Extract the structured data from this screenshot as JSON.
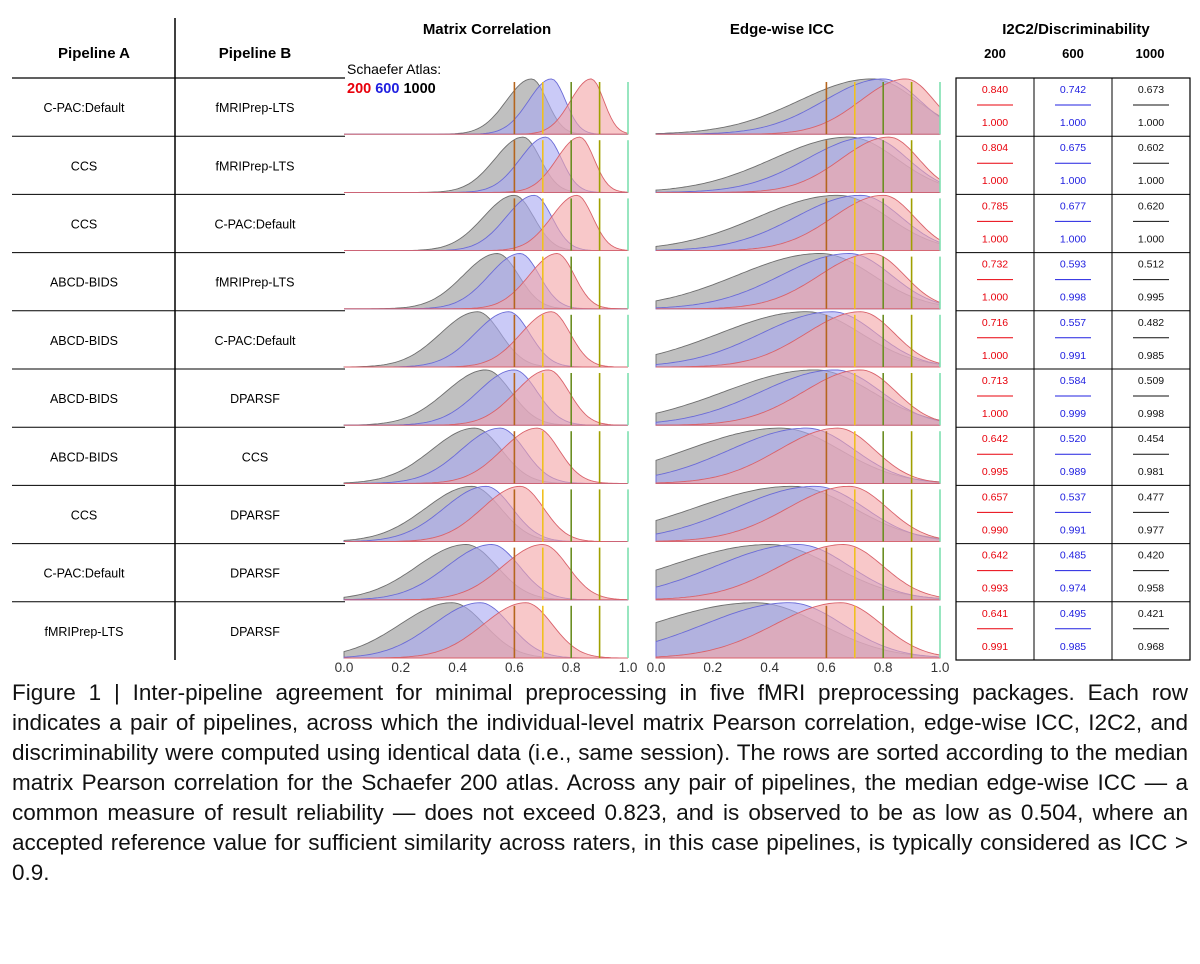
{
  "headers": {
    "pipeline_a": "Pipeline A",
    "pipeline_b": "Pipeline B",
    "matrix_correlation": "Matrix Correlation",
    "edge_icc": "Edge-wise ICC",
    "i2c2": "I2C2/Discriminability"
  },
  "atlas_legend": {
    "label": "Schaefer Atlas:",
    "items": [
      {
        "text": "200",
        "color": "#e8000b"
      },
      {
        "text": "600",
        "color": "#2020e0"
      },
      {
        "text": "1000",
        "color": "#000000"
      }
    ]
  },
  "i2c2_columns": [
    "200",
    "600",
    "1000"
  ],
  "series_colors": {
    "200": "#f4a6a8",
    "600": "#a9a9f2",
    "1000": "#9a9a9a"
  },
  "reference_lines": [
    {
      "x": 0.6,
      "color": "#b5651d"
    },
    {
      "x": 0.7,
      "color": "#f0c020"
    },
    {
      "x": 0.8,
      "color": "#6b8e23"
    },
    {
      "x": 0.9,
      "color": "#a0a000"
    },
    {
      "x": 1.0,
      "color": "#7fe0b0"
    }
  ],
  "axis_ticks": [
    "0.0",
    "0.2",
    "0.4",
    "0.6",
    "0.8",
    "1.0"
  ],
  "rows": [
    {
      "a": "C-PAC:Default",
      "b": "fMRIPrep-LTS",
      "i2c2": [
        [
          "0.840",
          "1.000"
        ],
        [
          "0.742",
          "1.000"
        ],
        [
          "0.673",
          "1.000"
        ]
      ]
    },
    {
      "a": "CCS",
      "b": "fMRIPrep-LTS",
      "i2c2": [
        [
          "0.804",
          "1.000"
        ],
        [
          "0.675",
          "1.000"
        ],
        [
          "0.602",
          "1.000"
        ]
      ]
    },
    {
      "a": "CCS",
      "b": "C-PAC:Default",
      "i2c2": [
        [
          "0.785",
          "1.000"
        ],
        [
          "0.677",
          "1.000"
        ],
        [
          "0.620",
          "1.000"
        ]
      ]
    },
    {
      "a": "ABCD-BIDS",
      "b": "fMRIPrep-LTS",
      "i2c2": [
        [
          "0.732",
          "1.000"
        ],
        [
          "0.593",
          "0.998"
        ],
        [
          "0.512",
          "0.995"
        ]
      ]
    },
    {
      "a": "ABCD-BIDS",
      "b": "C-PAC:Default",
      "i2c2": [
        [
          "0.716",
          "1.000"
        ],
        [
          "0.557",
          "0.991"
        ],
        [
          "0.482",
          "0.985"
        ]
      ]
    },
    {
      "a": "ABCD-BIDS",
      "b": "DPARSF",
      "i2c2": [
        [
          "0.713",
          "1.000"
        ],
        [
          "0.584",
          "0.999"
        ],
        [
          "0.509",
          "0.998"
        ]
      ]
    },
    {
      "a": "ABCD-BIDS",
      "b": "CCS",
      "i2c2": [
        [
          "0.642",
          "0.995"
        ],
        [
          "0.520",
          "0.989"
        ],
        [
          "0.454",
          "0.981"
        ]
      ]
    },
    {
      "a": "CCS",
      "b": "DPARSF",
      "i2c2": [
        [
          "0.657",
          "0.990"
        ],
        [
          "0.537",
          "0.991"
        ],
        [
          "0.477",
          "0.977"
        ]
      ]
    },
    {
      "a": "C-PAC:Default",
      "b": "DPARSF",
      "i2c2": [
        [
          "0.642",
          "0.993"
        ],
        [
          "0.485",
          "0.974"
        ],
        [
          "0.420",
          "0.958"
        ]
      ]
    },
    {
      "a": "fMRIPrep-LTS",
      "b": "DPARSF",
      "i2c2": [
        [
          "0.641",
          "0.991"
        ],
        [
          "0.495",
          "0.985"
        ],
        [
          "0.421",
          "0.968"
        ]
      ]
    }
  ],
  "chart_data": [
    {
      "type": "area",
      "title": "Matrix Correlation",
      "xlim": [
        0,
        1
      ],
      "modes": [
        {
          "200": 0.87,
          "600": 0.73,
          "1000": 0.66
        },
        {
          "200": 0.83,
          "600": 0.71,
          "1000": 0.63
        },
        {
          "200": 0.82,
          "600": 0.67,
          "1000": 0.6
        },
        {
          "200": 0.75,
          "600": 0.62,
          "1000": 0.54
        },
        {
          "200": 0.73,
          "600": 0.58,
          "1000": 0.47
        },
        {
          "200": 0.72,
          "600": 0.6,
          "1000": 0.5
        },
        {
          "200": 0.68,
          "600": 0.55,
          "1000": 0.46
        },
        {
          "200": 0.62,
          "600": 0.5,
          "1000": 0.45
        },
        {
          "200": 0.7,
          "600": 0.52,
          "1000": 0.43
        },
        {
          "200": 0.64,
          "600": 0.48,
          "1000": 0.38
        }
      ]
    },
    {
      "type": "area",
      "title": "Edge-wise ICC",
      "xlim": [
        0,
        1
      ],
      "modes": [
        {
          "200": 0.88,
          "600": 0.8,
          "1000": 0.76
        },
        {
          "200": 0.82,
          "600": 0.75,
          "1000": 0.68
        },
        {
          "200": 0.8,
          "600": 0.72,
          "1000": 0.64
        },
        {
          "200": 0.76,
          "600": 0.68,
          "1000": 0.58
        },
        {
          "200": 0.72,
          "600": 0.62,
          "1000": 0.53
        },
        {
          "200": 0.72,
          "600": 0.63,
          "1000": 0.56
        },
        {
          "200": 0.64,
          "600": 0.53,
          "1000": 0.44
        },
        {
          "200": 0.68,
          "600": 0.56,
          "1000": 0.48
        },
        {
          "200": 0.66,
          "600": 0.5,
          "1000": 0.4
        },
        {
          "200": 0.65,
          "600": 0.47,
          "1000": 0.35
        }
      ]
    }
  ],
  "caption": [
    "Figure 1 |  Inter-pipeline agreement for minimal preprocessing in five fMRI preprocessing packages. Each row indicates a pair of pipelines, across which the individual-level matrix Pearson correlation, edge-wise ICC, I2C2, and discriminability were computed using identical data (i.e., same session). The rows are sorted according to the median matrix Pearson correlation for the Schaefer 200 atlas. Across any pair of pipelines, the median edge-wise ICC — a common measure of result reliability — does not exceed 0.823, and is observed to be as low as 0.504, where an accepted reference value for sufficient similarity across raters, in this case pipelines, is typically considered as ICC > 0.9."
  ]
}
